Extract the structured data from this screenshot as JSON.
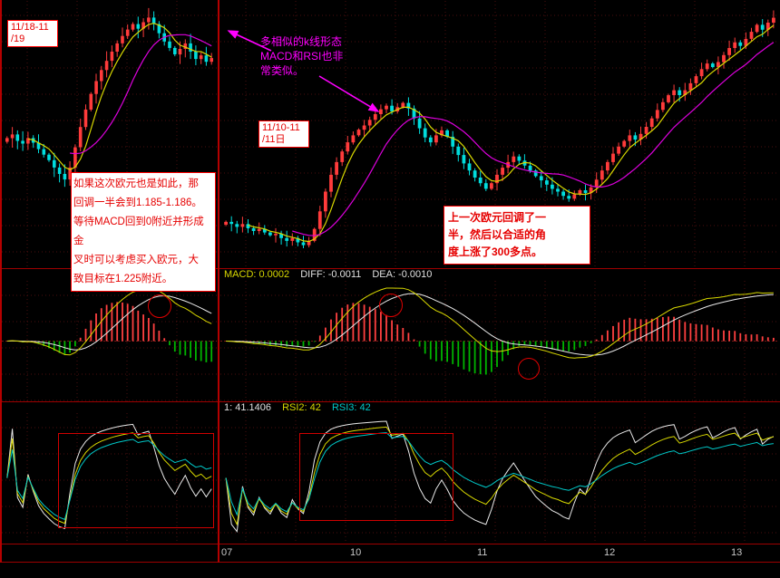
{
  "colors": {
    "background": "#000000",
    "border_red": "#b40000",
    "grid": "#4a0e0e",
    "candle_up": "#ff3b3b",
    "candle_down": "#00dcdc",
    "ma_fast": "#d8d800",
    "ma_slow": "#dc00dc",
    "macd_hist_pos": "#ff4040",
    "macd_hist_neg": "#00b400",
    "macd_diff": "#d8d800",
    "macd_dea": "#e8e8e8",
    "rsi1": "#e8e8e8",
    "rsi2": "#d8d800",
    "rsi3": "#00c8c8",
    "annotation_red": "#e60000",
    "annotation_magenta": "#ff00ff",
    "axis_text": "#c8c8c8"
  },
  "left_panel": {
    "period_label": "11/18-11\n/19",
    "analysis_note": "如果这次欧元也是如此，那\n回调一半会到1.185-1.186。\n等待MACD回到0附近并形成金\n叉时可以考虑买入欧元，大\n致目标在1.225附近。"
  },
  "right_panel": {
    "comparison_note": "多相似的k线形态\nMACD和RSI也非\n常类似。",
    "period_label": "11/10-11\n/11日",
    "analysis_note": "上一次欧元回调了一\n半，然后以合适的角\n度上涨了300多点。",
    "macd_header": {
      "macd": "MACD: 0.0002",
      "diff": "DIFF: -0.0011",
      "dea": "DEA: -0.0010"
    },
    "rsi_header": {
      "rsi1": "1: 41.1406",
      "rsi2": "RSI2: 42",
      "rsi3": "RSI3: 42"
    }
  },
  "axis": {
    "date_labels": [
      "07",
      "10",
      "11",
      "12",
      "13"
    ]
  },
  "chart_data": [
    {
      "id": "left",
      "panel": "left",
      "type": "candlestick",
      "description": "EUR candlestick chart (11/18-11/19 rally) with MA overlays, MACD and RSI sub-panels; values estimated from pixels",
      "closes": [
        1.1872,
        1.1876,
        1.1869,
        1.1866,
        1.1872,
        1.1867,
        1.186,
        1.1854,
        1.1848,
        1.184,
        1.1833,
        1.1827,
        1.184,
        1.1862,
        1.1884,
        1.1903,
        1.192,
        1.1934,
        1.1946,
        1.1956,
        1.1966,
        1.1975,
        1.1983,
        1.199,
        1.1996,
        1.1991,
        1.1998,
        1.2003,
        1.1996,
        1.1986,
        1.1977,
        1.197,
        1.1963,
        1.1969,
        1.1975,
        1.1966,
        1.1958,
        1.1962,
        1.1955,
        1.1959
      ],
      "ma_periods": [
        5,
        13
      ],
      "macd_params": {
        "fast": 12,
        "slow": 26,
        "signal": 9
      },
      "rsi_periods": [
        6,
        12,
        24
      ],
      "scale_pad": {
        "top": 0.04,
        "bottom": 0.45
      },
      "x_tick_labels": []
    },
    {
      "id": "right",
      "panel": "right",
      "type": "candlestick",
      "description": "EUR candlestick chart (11/07-11/13, rally of 300+ points after half retracement) with MA overlays, MACD and RSI sub-panels; values estimated from pixels",
      "closes": [
        1.1325,
        1.1322,
        1.1318,
        1.1322,
        1.1316,
        1.1312,
        1.1315,
        1.131,
        1.1306,
        1.1308,
        1.1302,
        1.1298,
        1.1302,
        1.1296,
        1.1292,
        1.1298,
        1.1315,
        1.134,
        1.1368,
        1.1392,
        1.141,
        1.1425,
        1.1438,
        1.1448,
        1.1456,
        1.1462,
        1.147,
        1.1478,
        1.1485,
        1.149,
        1.1482,
        1.1488,
        1.1494,
        1.1486,
        1.1472,
        1.1458,
        1.1445,
        1.1438,
        1.1448,
        1.1455,
        1.1446,
        1.1432,
        1.142,
        1.1408,
        1.1398,
        1.1388,
        1.138,
        1.1372,
        1.138,
        1.1392,
        1.1402,
        1.141,
        1.1418,
        1.1412,
        1.1405,
        1.1398,
        1.139,
        1.1384,
        1.1378,
        1.1372,
        1.1368,
        1.1362,
        1.1358,
        1.1364,
        1.137,
        1.1366,
        1.1374,
        1.1385,
        1.1398,
        1.141,
        1.1422,
        1.1432,
        1.144,
        1.1448,
        1.1442,
        1.145,
        1.146,
        1.1472,
        1.1484,
        1.1495,
        1.1505,
        1.1512,
        1.1505,
        1.1512,
        1.1522,
        1.1532,
        1.1542,
        1.155,
        1.1545,
        1.1552,
        1.1562,
        1.1572,
        1.158,
        1.1575,
        1.1585,
        1.1595,
        1.1605,
        1.1598,
        1.1608,
        1.1615
      ],
      "ma_periods": [
        5,
        13
      ],
      "macd_params": {
        "fast": 12,
        "slow": 26,
        "signal": 9
      },
      "rsi_periods": [
        6,
        12,
        24
      ],
      "scale_pad": {
        "top": 0.04,
        "bottom": 0.08
      },
      "x_tick_labels": [
        "07",
        "10",
        "11",
        "12",
        "13"
      ]
    }
  ]
}
